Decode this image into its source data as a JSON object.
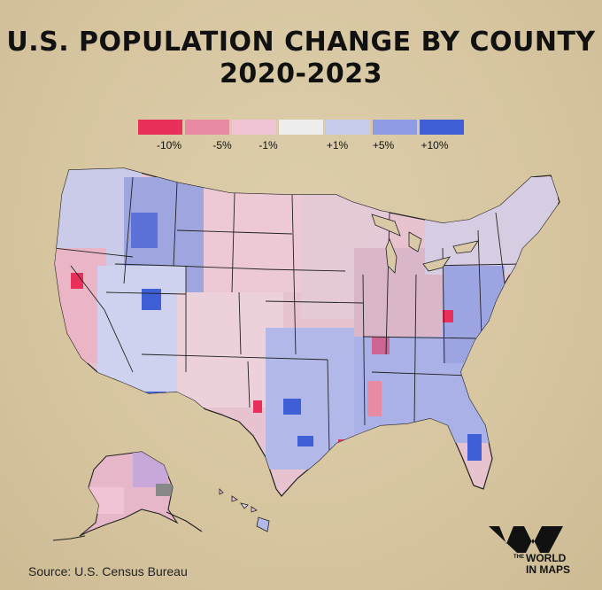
{
  "title": {
    "line1": "U.S. POPULATION CHANGE BY COUNTY",
    "line2": "2020-2023"
  },
  "legend": [
    {
      "label": "-10%",
      "color": "#e8305a"
    },
    {
      "label": "-5%",
      "color": "#e98aa5"
    },
    {
      "label": "-1%",
      "color": "#efc3d3"
    },
    {
      "label": "",
      "color": "#ededed"
    },
    {
      "label": "+1%",
      "color": "#c7ccec"
    },
    {
      "label": "+5%",
      "color": "#8f9ce3"
    },
    {
      "label": "+10%",
      "color": "#3e5fd6"
    }
  ],
  "source": "Source: U.S. Census Bureau",
  "brand": {
    "small": "THE",
    "line1": "WORLD",
    "line2": "IN MAPS"
  }
}
